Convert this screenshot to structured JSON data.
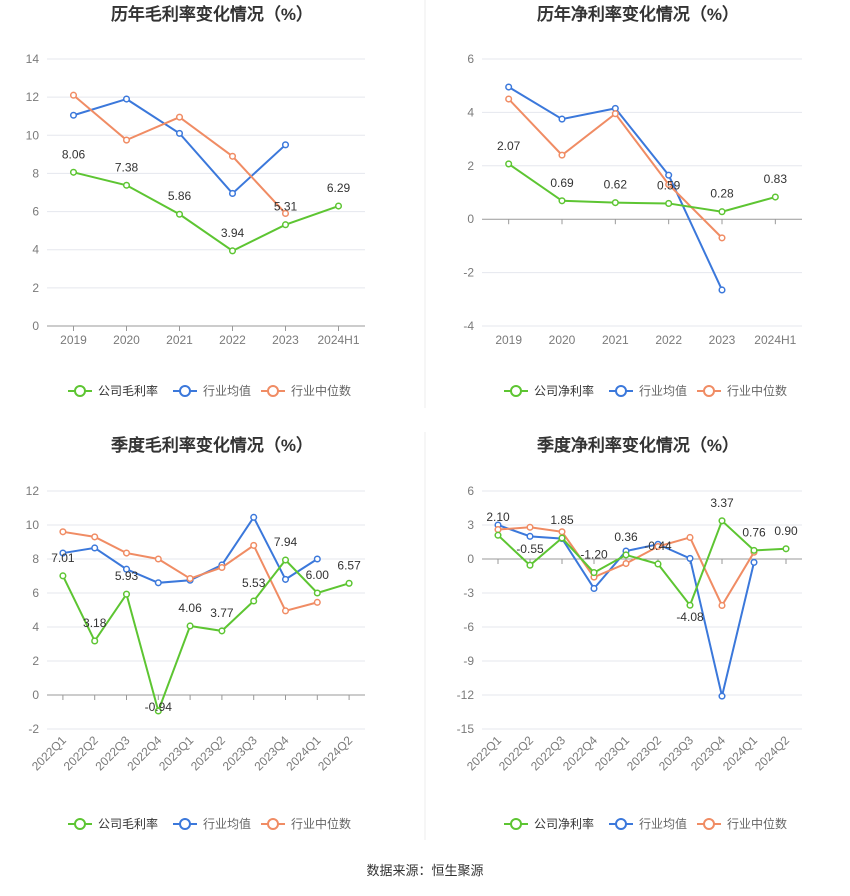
{
  "colors": {
    "company": "#5dc532",
    "industry_avg": "#3b78db",
    "industry_median": "#f08c64",
    "grid": "#e5e7ee",
    "axis": "#7a7a7a",
    "title": "#333333"
  },
  "legend": {
    "gross_company": "公司毛利率",
    "net_company": "公司净利率",
    "industry_avg": "行业均值",
    "industry_median": "行业中位数"
  },
  "source": "数据来源：恒生聚源",
  "chart_data": [
    {
      "type": "line",
      "title": "历年毛利率变化情况（%）",
      "categories": [
        "2019",
        "2020",
        "2021",
        "2022",
        "2023",
        "2024H1"
      ],
      "ylim": [
        0,
        14
      ],
      "yticks": [
        0,
        2,
        4,
        6,
        8,
        10,
        12,
        14
      ],
      "series": [
        {
          "name": "公司毛利率",
          "values": [
            8.06,
            7.38,
            5.86,
            3.94,
            5.31,
            6.29
          ],
          "labels": [
            "8.06",
            "7.38",
            "5.86",
            "3.94",
            "5.31",
            "6.29"
          ]
        },
        {
          "name": "行业均值",
          "values": [
            11.05,
            11.9,
            10.1,
            6.95,
            9.5,
            null
          ]
        },
        {
          "name": "行业中位数",
          "values": [
            12.1,
            9.75,
            10.95,
            8.9,
            5.9,
            null
          ]
        }
      ]
    },
    {
      "type": "line",
      "title": "历年净利率变化情况（%）",
      "categories": [
        "2019",
        "2020",
        "2021",
        "2022",
        "2023",
        "2024H1"
      ],
      "ylim": [
        -4,
        6
      ],
      "yticks": [
        -4,
        -2,
        0,
        2,
        4,
        6
      ],
      "series": [
        {
          "name": "公司净利率",
          "values": [
            2.07,
            0.69,
            0.62,
            0.59,
            0.28,
            0.83
          ],
          "labels": [
            "2.07",
            "0.69",
            "0.62",
            "0.59",
            "0.28",
            "0.83"
          ]
        },
        {
          "name": "行业均值",
          "values": [
            4.95,
            3.75,
            4.15,
            1.65,
            -2.65,
            null
          ]
        },
        {
          "name": "行业中位数",
          "values": [
            4.5,
            2.4,
            3.95,
            1.3,
            -0.7,
            null
          ]
        }
      ]
    },
    {
      "type": "line",
      "title": "季度毛利率变化情况（%）",
      "categories": [
        "2022Q1",
        "2022Q2",
        "2022Q3",
        "2022Q4",
        "2023Q1",
        "2023Q2",
        "2023Q3",
        "2023Q4",
        "2024Q1",
        "2024Q2"
      ],
      "ylim": [
        -2,
        12
      ],
      "yticks": [
        -2,
        0,
        2,
        4,
        6,
        8,
        10,
        12
      ],
      "series": [
        {
          "name": "公司毛利率",
          "values": [
            7.01,
            3.18,
            5.93,
            -0.94,
            4.06,
            3.77,
            5.53,
            7.94,
            6.0,
            6.57
          ],
          "labels": [
            "7.01",
            "3.18",
            "5.93",
            "-0.94",
            "4.06",
            "3.77",
            "5.53",
            "7.94",
            "6.00",
            "6.57"
          ]
        },
        {
          "name": "行业均值",
          "values": [
            8.35,
            8.65,
            7.4,
            6.6,
            6.75,
            7.65,
            10.45,
            6.8,
            8.0,
            null
          ]
        },
        {
          "name": "行业中位数",
          "values": [
            9.6,
            9.3,
            8.35,
            8.0,
            6.85,
            7.5,
            8.8,
            4.95,
            5.45,
            null
          ]
        }
      ]
    },
    {
      "type": "line",
      "title": "季度净利率变化情况（%）",
      "categories": [
        "2022Q1",
        "2022Q2",
        "2022Q3",
        "2022Q4",
        "2023Q1",
        "2023Q2",
        "2023Q3",
        "2023Q4",
        "2024Q1",
        "2024Q2"
      ],
      "ylim": [
        -15,
        6
      ],
      "yticks": [
        -15,
        -12,
        -9,
        -6,
        -3,
        0,
        3,
        6
      ],
      "series": [
        {
          "name": "公司净利率",
          "values": [
            2.1,
            -0.55,
            1.85,
            -1.2,
            0.36,
            -0.44,
            -4.08,
            3.37,
            0.76,
            0.9
          ],
          "labels": [
            "2.10",
            "-0.55",
            "1.85",
            "-1.20",
            "0.36",
            "-0.44",
            "-4.08",
            "3.37",
            "0.76",
            "0.90"
          ]
        },
        {
          "name": "行业均值",
          "values": [
            3.0,
            2.0,
            1.8,
            -2.6,
            0.7,
            1.3,
            0.05,
            -12.1,
            -0.3,
            null
          ]
        },
        {
          "name": "行业中位数",
          "values": [
            2.6,
            2.8,
            2.4,
            -1.6,
            -0.4,
            1.1,
            1.9,
            -4.1,
            0.6,
            null
          ]
        }
      ]
    }
  ]
}
